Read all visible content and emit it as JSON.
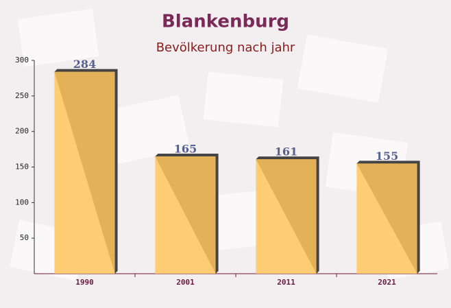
{
  "chart_data": {
    "type": "bar",
    "title": "Blankenburg",
    "subtitle": "Bevölkerung nach jahr",
    "categories": [
      "1990",
      "2001",
      "2011",
      "2021"
    ],
    "values": [
      284,
      165,
      161,
      155
    ],
    "color": "#ffc55c",
    "ylim": [
      0,
      300
    ],
    "yticks": [
      50,
      100,
      150,
      200,
      250,
      300
    ],
    "grid": false
  }
}
